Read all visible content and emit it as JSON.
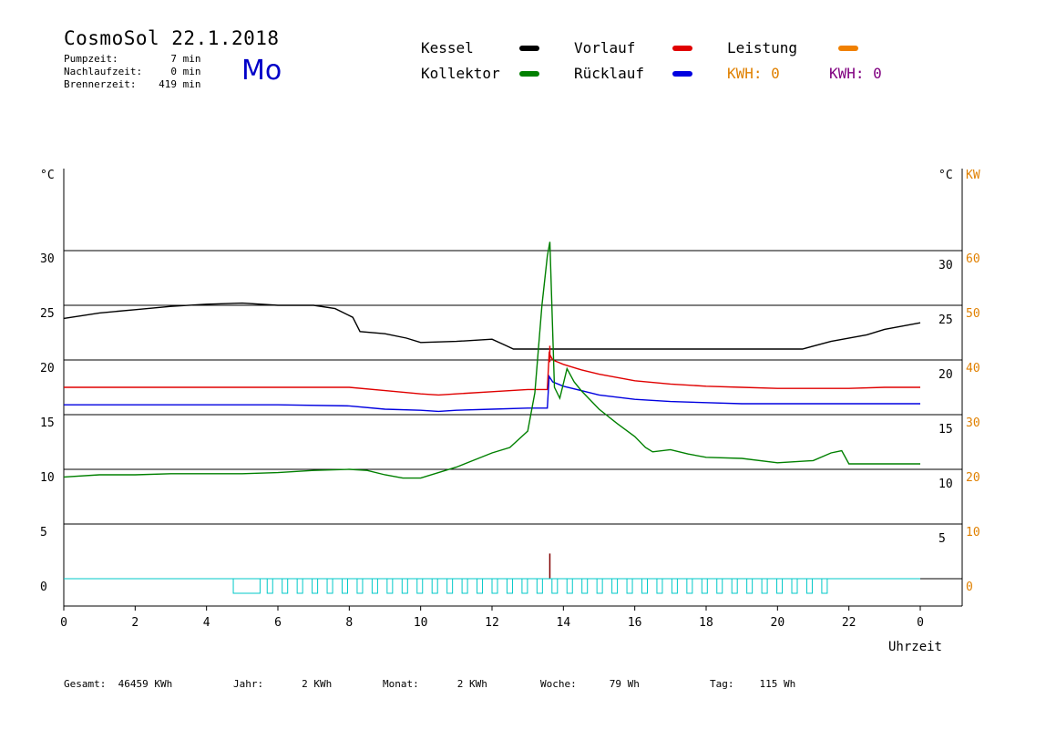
{
  "header": {
    "title": "CosmoSol 22.1.2018",
    "weekday": "Mo",
    "stats": [
      {
        "label": "Pumpzeit:",
        "value": "7",
        "unit": "min"
      },
      {
        "label": "Nachlaufzeit:",
        "value": "0",
        "unit": "min"
      },
      {
        "label": "Brennerzeit:",
        "value": "419",
        "unit": "min"
      }
    ]
  },
  "legend": {
    "kessel": {
      "label": "Kessel",
      "color": "#000000"
    },
    "vorlauf": {
      "label": "Vorlauf",
      "color": "#e00000"
    },
    "leistung": {
      "label": "Leistung",
      "color": "#f08000"
    },
    "kollektor": {
      "label": "Kollektor",
      "color": "#008000"
    },
    "ruecklauf": {
      "label": "Rücklauf",
      "color": "#0000e0"
    },
    "kwh1": {
      "label": "KWH:",
      "value": "0",
      "color": "#e08000"
    },
    "kwh2": {
      "label": "KWH:",
      "value": "0",
      "color": "#800080"
    }
  },
  "footer": [
    {
      "label": "Gesamt:",
      "value": "46459 KWh"
    },
    {
      "label": "Jahr:",
      "value": "2 KWh"
    },
    {
      "label": "Monat:",
      "value": "2 KWh"
    },
    {
      "label": "Woche:",
      "value": "79 Wh"
    },
    {
      "label": "Tag:",
      "value": "115 Wh"
    }
  ],
  "chart_data": {
    "type": "line",
    "xlabel": "Uhrzeit",
    "x_ticks": [
      "0",
      "2",
      "4",
      "6",
      "8",
      "10",
      "12",
      "14",
      "16",
      "18",
      "20",
      "22",
      "0"
    ],
    "xlim": [
      0,
      24
    ],
    "ylim": [
      -2.5,
      37.5
    ],
    "y_unit_left": "°C",
    "y_unit_right": "°C",
    "y2_unit": "KW",
    "y_ticks_left": [
      "0",
      "5",
      "10",
      "15",
      "20",
      "25",
      "30"
    ],
    "y_ticks_right": [
      "5",
      "10",
      "15",
      "20",
      "25",
      "30"
    ],
    "y2_ticks": [
      "0",
      "10",
      "20",
      "30",
      "40",
      "50",
      "60"
    ],
    "grid": true,
    "series": [
      {
        "name": "Kessel",
        "color": "#000000",
        "x": [
          0,
          1,
          2,
          3,
          4,
          5,
          6,
          7,
          7.6,
          8.1,
          8.3,
          9,
          9.6,
          10,
          11,
          12,
          12.4,
          12.6,
          13,
          14,
          16,
          18,
          20,
          20.7,
          21.5,
          22.5,
          23,
          24
        ],
        "y": [
          23.8,
          24.3,
          24.6,
          24.9,
          25.1,
          25.2,
          25.0,
          25.0,
          24.7,
          23.9,
          22.6,
          22.4,
          22.0,
          21.6,
          21.7,
          21.9,
          21.3,
          21.0,
          21.0,
          21.0,
          21.0,
          21.0,
          21.0,
          21.0,
          21.7,
          22.3,
          22.8,
          23.4
        ]
      },
      {
        "name": "Vorlauf",
        "color": "#e00000",
        "x": [
          0,
          2,
          4,
          6,
          8,
          9,
          10,
          10.5,
          11,
          12,
          13,
          13.55,
          13.6,
          13.7,
          14,
          14.5,
          15,
          16,
          17,
          18,
          19,
          20,
          21,
          22,
          23,
          24
        ],
        "y": [
          17.5,
          17.5,
          17.5,
          17.5,
          17.5,
          17.2,
          16.9,
          16.8,
          16.9,
          17.1,
          17.3,
          17.3,
          20.6,
          20.0,
          19.6,
          19.1,
          18.7,
          18.1,
          17.8,
          17.6,
          17.5,
          17.4,
          17.4,
          17.4,
          17.5,
          17.5
        ],
        "spike": {
          "x": 13.62,
          "y": 21.3
        }
      },
      {
        "name": "Rücklauf",
        "color": "#0000e0",
        "x": [
          0,
          2,
          4,
          6,
          8,
          9,
          10,
          10.5,
          11,
          12,
          13,
          13.55,
          13.6,
          13.7,
          14,
          14.5,
          15,
          16,
          17,
          18,
          19,
          20,
          21,
          22,
          23,
          24
        ],
        "y": [
          15.9,
          15.9,
          15.9,
          15.9,
          15.8,
          15.5,
          15.4,
          15.3,
          15.4,
          15.5,
          15.6,
          15.6,
          18.5,
          18.0,
          17.6,
          17.2,
          16.8,
          16.4,
          16.2,
          16.1,
          16.0,
          16.0,
          16.0,
          16.0,
          16.0,
          16.0
        ]
      },
      {
        "name": "Kollektor",
        "color": "#008000",
        "x": [
          0,
          1,
          2,
          3,
          4,
          5,
          6,
          7,
          8,
          8.5,
          9,
          9.5,
          10,
          11,
          12,
          12.5,
          13,
          13.2,
          13.4,
          13.55,
          13.62,
          13.75,
          13.9,
          14.1,
          14.3,
          14.5,
          15,
          15.5,
          16,
          16.3,
          16.5,
          17,
          17.5,
          18,
          19,
          20,
          21,
          21.5,
          21.8,
          22,
          23,
          24
        ],
        "y": [
          9.3,
          9.5,
          9.5,
          9.6,
          9.6,
          9.6,
          9.7,
          9.9,
          10.0,
          9.9,
          9.5,
          9.2,
          9.2,
          10.2,
          11.5,
          12.0,
          13.5,
          17.0,
          25.0,
          29.5,
          30.8,
          17.5,
          16.5,
          19.2,
          18.0,
          17.2,
          15.5,
          14.2,
          13.0,
          12.0,
          11.6,
          11.8,
          11.4,
          11.1,
          11.0,
          10.6,
          10.8,
          11.5,
          11.7,
          10.5,
          10.5,
          10.5
        ]
      }
    ],
    "leistung_peak": {
      "x": 13.62,
      "value": 4.6
    }
  }
}
